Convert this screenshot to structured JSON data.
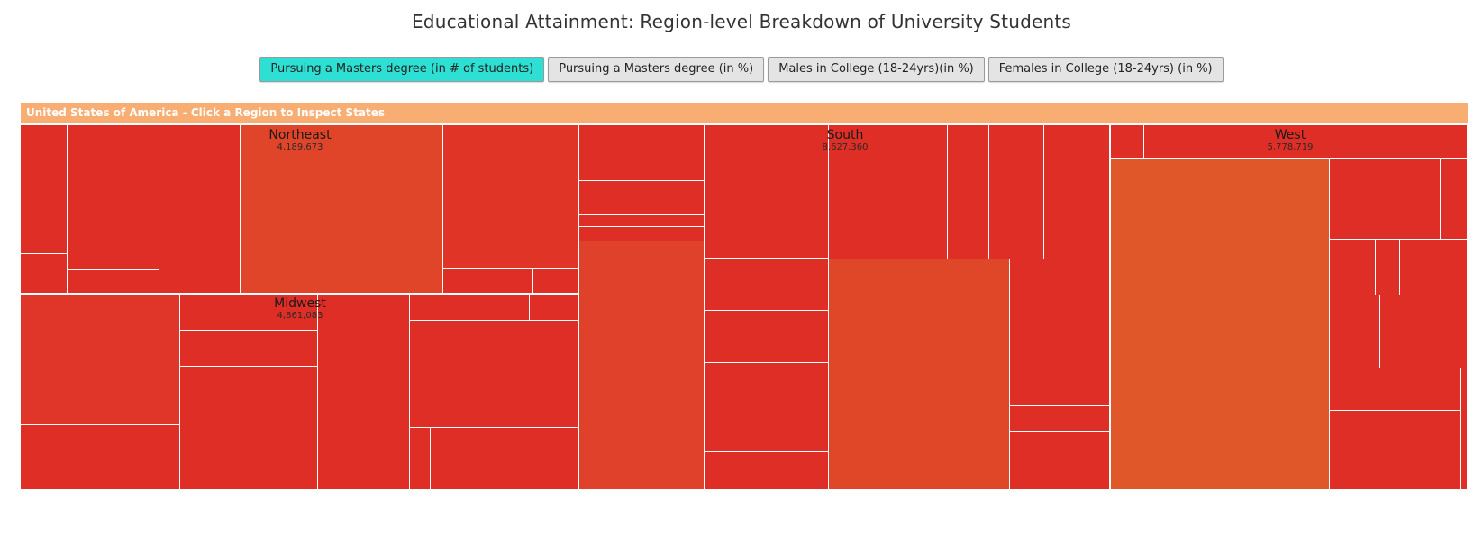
{
  "page": {
    "title": "Educational Attainment: Region-level Breakdown of University Students"
  },
  "buttons": [
    {
      "label": "Pursuing a Masters degree (in # of students)",
      "active": true
    },
    {
      "label": "Pursuing a Masters degree (in %)",
      "active": false
    },
    {
      "label": "Males in College (18-24yrs)(in %)",
      "active": false
    },
    {
      "label": "Females in College (18-24yrs) (in %)",
      "active": false
    }
  ],
  "banner": {
    "text": "United States of America - Click a Region to Inspect States"
  },
  "colors": {
    "accent": "#2ee0d4",
    "banner": "#f8ad72",
    "tile_low": "#df2b27",
    "tile_high": "#e05829"
  },
  "regions": [
    {
      "name": "Northeast",
      "value": "4,189,673"
    },
    {
      "name": "South",
      "value": "8,627,360"
    },
    {
      "name": "West",
      "value": "5,778,719"
    },
    {
      "name": "Midwest",
      "value": "4,861,083"
    }
  ]
}
